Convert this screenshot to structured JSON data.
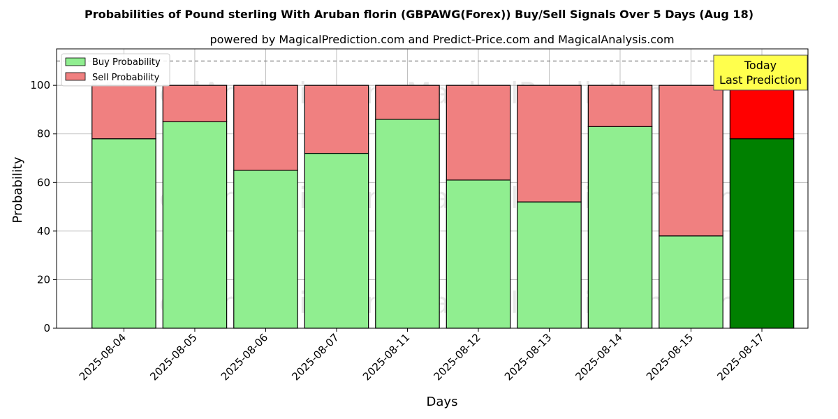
{
  "chart_data": {
    "type": "bar",
    "stacked": true,
    "title": "Probabilities of Pound sterling With Aruban florin (GBPAWG(Forex)) Buy/Sell Signals Over 5 Days (Aug 18)",
    "subtitle": "powered by MagicalPrediction.com and Predict-Price.com and MagicalAnalysis.com",
    "xlabel": "Days",
    "ylabel": "Probability",
    "ylim": [
      0,
      115
    ],
    "yticks": [
      0,
      20,
      40,
      60,
      80,
      100
    ],
    "reference_line": 110,
    "grid": true,
    "legend_position": "top-left",
    "categories": [
      "2025-08-04",
      "2025-08-05",
      "2025-08-06",
      "2025-08-07",
      "2025-08-11",
      "2025-08-12",
      "2025-08-13",
      "2025-08-14",
      "2025-08-15",
      "2025-08-17"
    ],
    "series": [
      {
        "name": "Buy Probability",
        "values": [
          78,
          85,
          65,
          72,
          86,
          61,
          52,
          83,
          38,
          78
        ],
        "color": "#90ee90",
        "highlight_color": "#008000"
      },
      {
        "name": "Sell Probability",
        "values": [
          22,
          15,
          35,
          28,
          14,
          39,
          48,
          17,
          62,
          22
        ],
        "color": "#f08080",
        "highlight_color": "#ff0000"
      }
    ],
    "highlight_index": 9,
    "annotation": {
      "line1": "Today",
      "line2": "Last Prediction",
      "color": "#ffff4d"
    },
    "watermarks": [
      "MagicalAnalysis.com",
      "MagicalPrediction.com"
    ]
  }
}
